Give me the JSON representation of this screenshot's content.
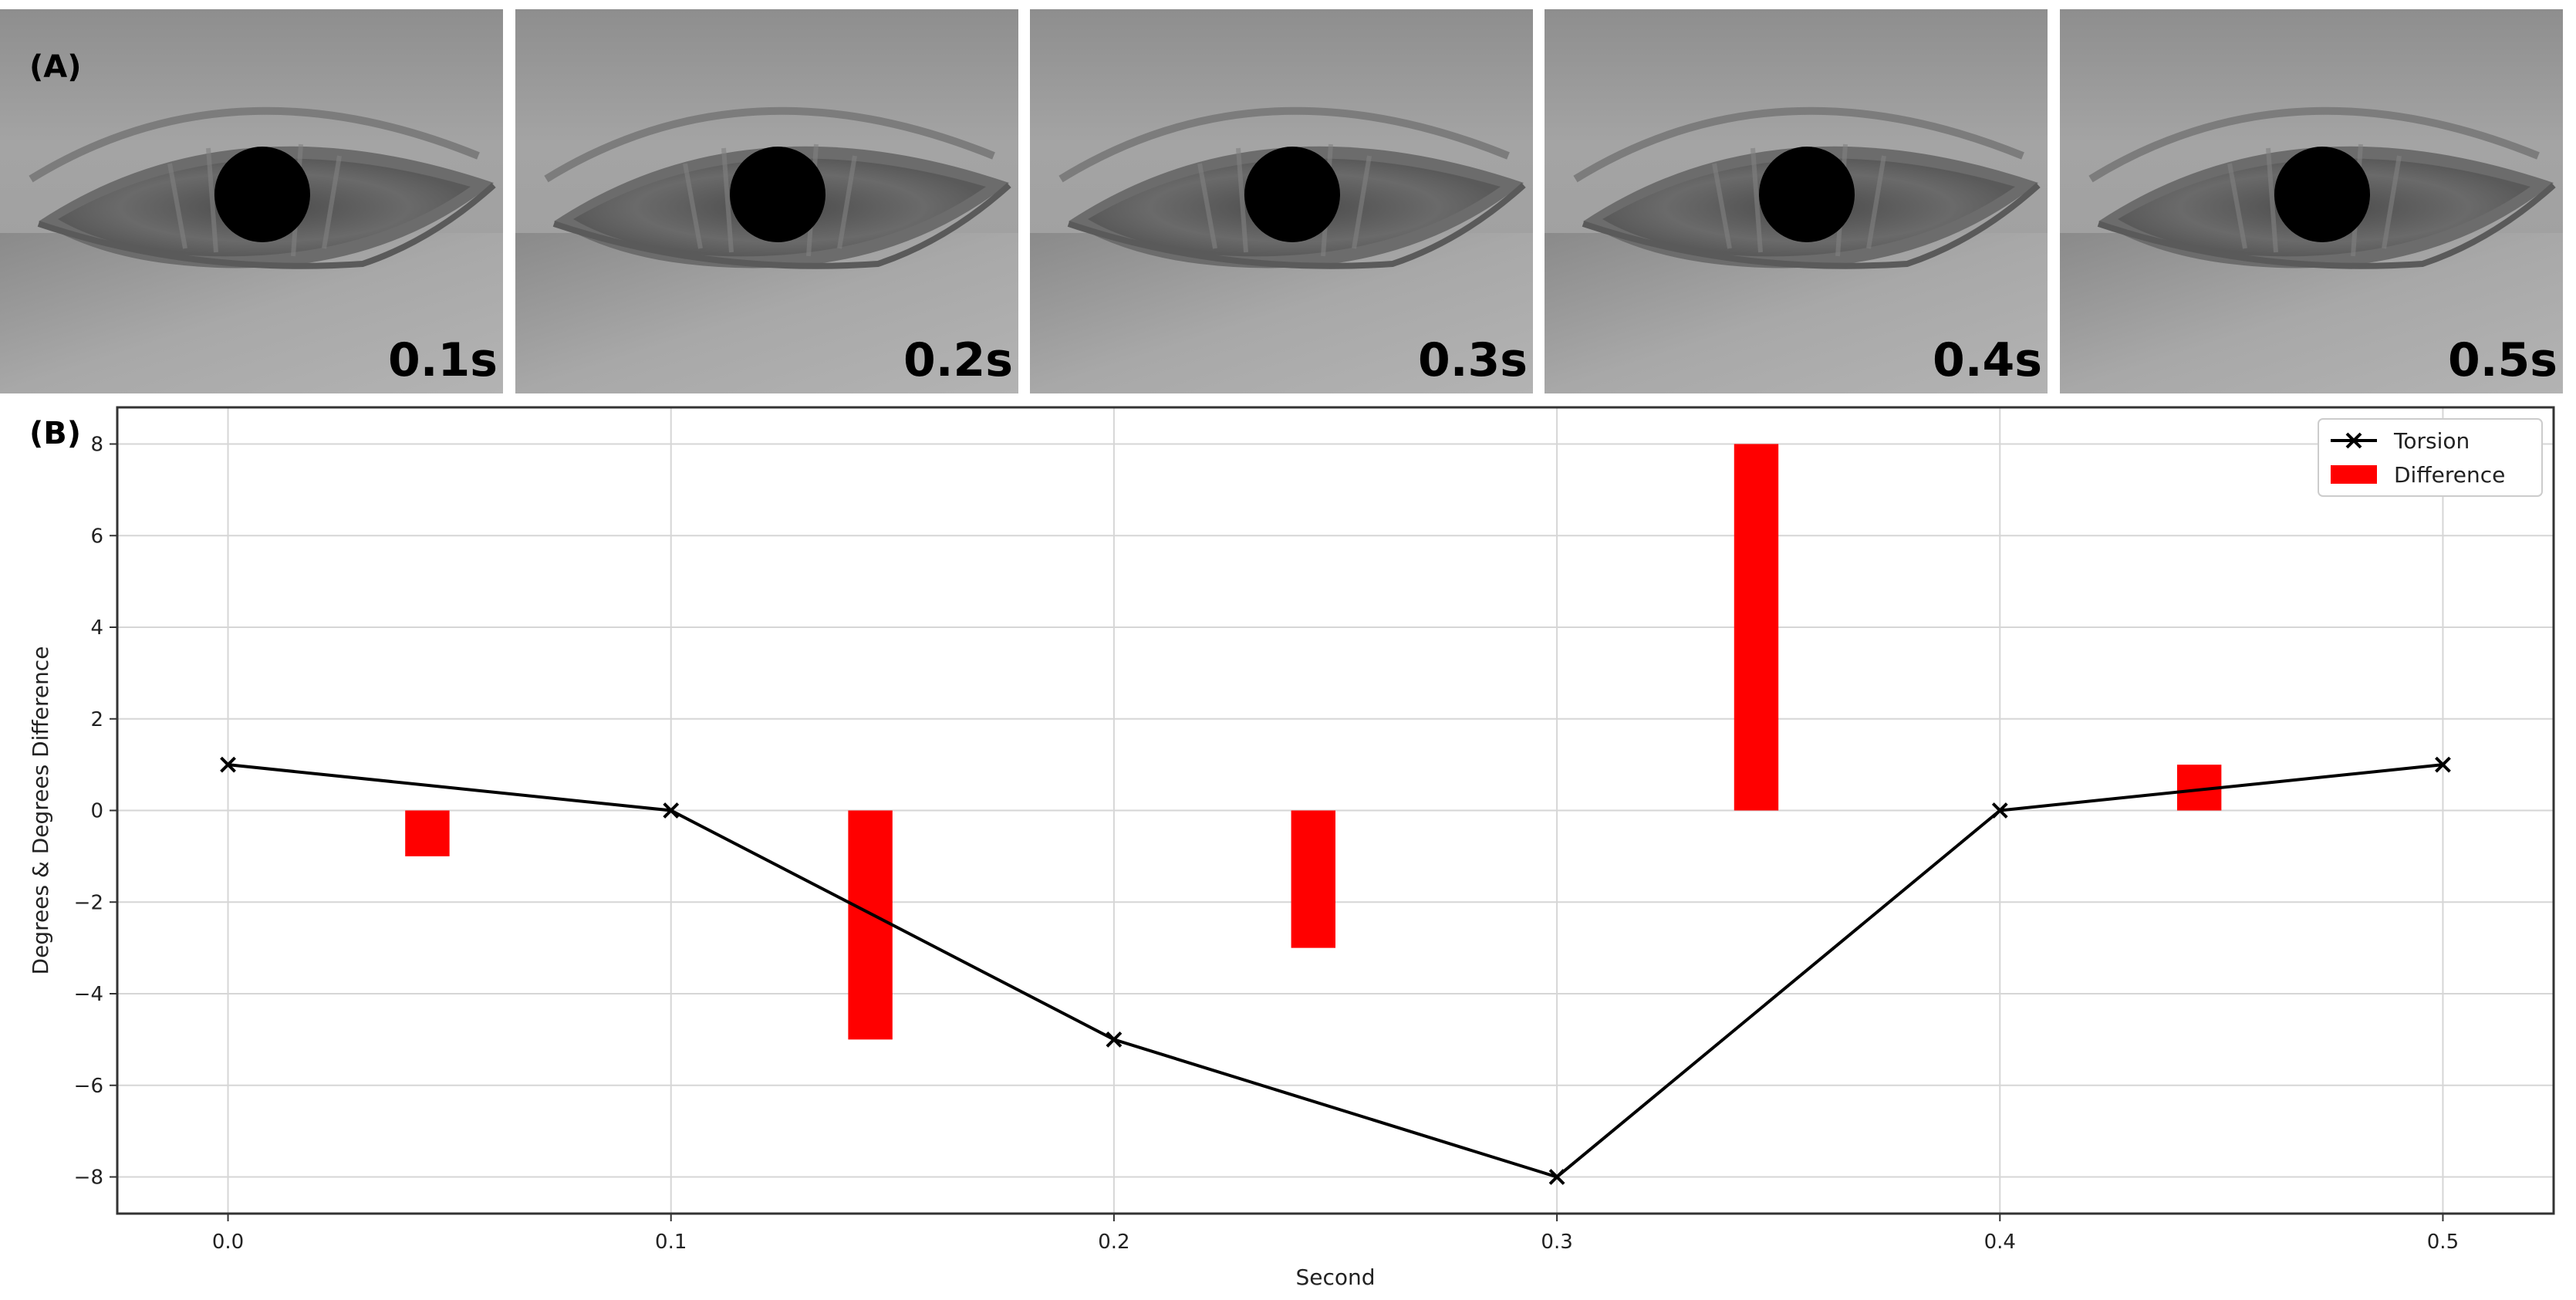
{
  "panel_a": {
    "label": "(A)",
    "frames": [
      {
        "time_label": "0.1s"
      },
      {
        "time_label": "0.2s"
      },
      {
        "time_label": "0.3s"
      },
      {
        "time_label": "0.4s"
      },
      {
        "time_label": "0.5s"
      }
    ]
  },
  "panel_b": {
    "label": "(B)"
  },
  "chart_data": {
    "type": "line",
    "title": "",
    "xlabel": "Second",
    "ylabel": "Degrees & Degrees Difference",
    "xlim": [
      -0.025,
      0.525
    ],
    "ylim": [
      -8.8,
      8.8
    ],
    "x_ticks": [
      0.0,
      0.1,
      0.2,
      0.3,
      0.4,
      0.5
    ],
    "x_tick_labels": [
      "0.0",
      "0.1",
      "0.2",
      "0.3",
      "0.4",
      "0.5"
    ],
    "y_ticks": [
      8,
      6,
      4,
      2,
      0,
      -2,
      -4,
      -6,
      -8
    ],
    "y_tick_labels": [
      "8",
      "6",
      "4",
      "2",
      "0",
      "−2",
      "−4",
      "−6",
      "−8"
    ],
    "grid": true,
    "legend_position": "top-right",
    "series": [
      {
        "name": "Torsion",
        "type": "line",
        "marker": "x",
        "color": "#000000",
        "x": [
          0.0,
          0.1,
          0.2,
          0.3,
          0.4,
          0.5
        ],
        "y": [
          1,
          0,
          -5,
          -8,
          0,
          1
        ]
      },
      {
        "name": "Difference",
        "type": "bar",
        "color": "#ff0000",
        "x": [
          0.045,
          0.145,
          0.245,
          0.345,
          0.445
        ],
        "y": [
          -1,
          -5,
          -3,
          8,
          1
        ]
      }
    ]
  }
}
